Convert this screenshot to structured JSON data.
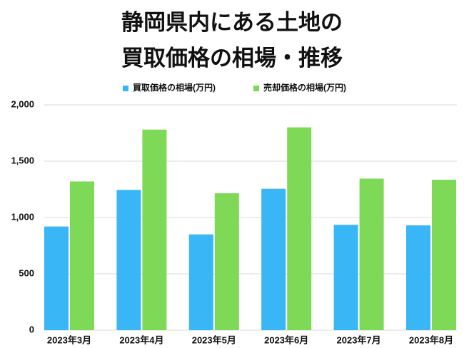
{
  "chart_data": {
    "type": "bar",
    "title": [
      "静岡県内にある土地の",
      "買取価格の相場・推移"
    ],
    "categories": [
      "2023年3月",
      "2023年4月",
      "2023年5月",
      "2023年6月",
      "2023年7月",
      "2023年8月"
    ],
    "series": [
      {
        "name": "買取価格の相場(万円)",
        "color": "#38b6f5",
        "values": [
          920,
          1245,
          850,
          1255,
          935,
          930
        ]
      },
      {
        "name": "売却価格の相場(万円)",
        "color": "#7ed957",
        "values": [
          1320,
          1780,
          1215,
          1800,
          1345,
          1335
        ]
      }
    ],
    "ylim": [
      0,
      2000
    ],
    "yticks": [
      0,
      500,
      {
        "value": 1000,
        "label": "1,000"
      },
      {
        "value": 1500,
        "label": "1,500"
      },
      {
        "value": 2000,
        "label": "2,000"
      }
    ],
    "grid": true,
    "legend": "top"
  }
}
